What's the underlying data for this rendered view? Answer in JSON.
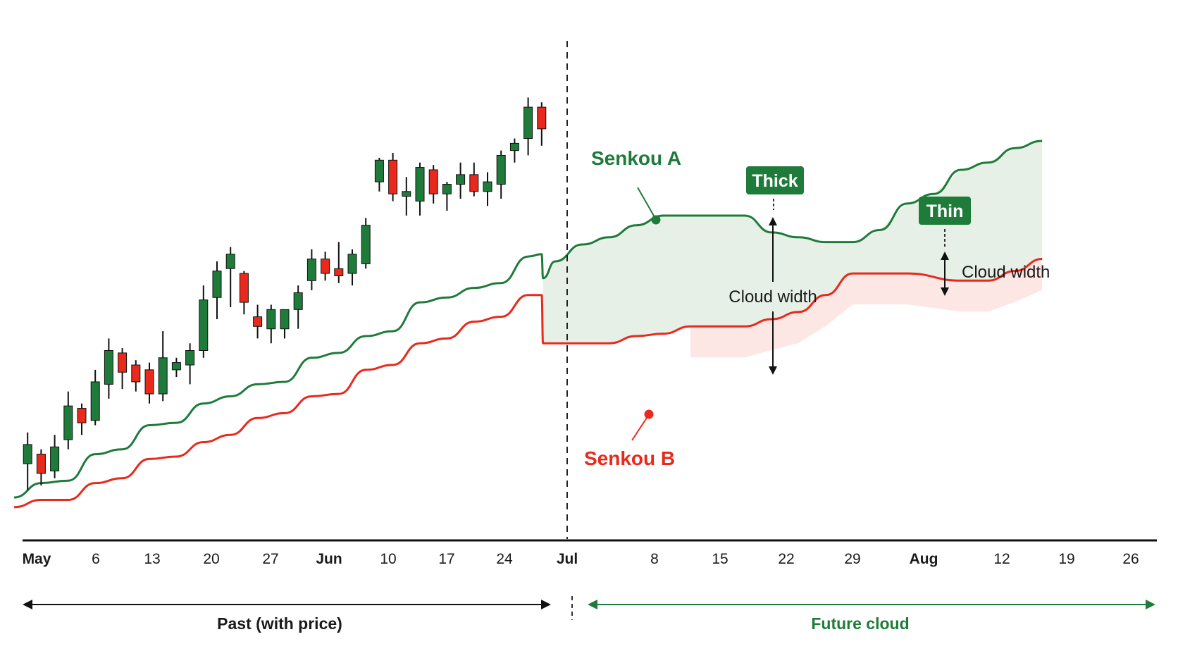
{
  "chart_data": {
    "type": "candlestick_ichimoku",
    "title": "",
    "xlabel": "",
    "ylabel": "",
    "x_ticks": [
      {
        "label": "May",
        "major": true
      },
      {
        "label": "6",
        "major": false
      },
      {
        "label": "13",
        "major": false
      },
      {
        "label": "20",
        "major": false
      },
      {
        "label": "27",
        "major": false
      },
      {
        "label": "Jun",
        "major": true
      },
      {
        "label": "10",
        "major": false
      },
      {
        "label": "17",
        "major": false
      },
      {
        "label": "24",
        "major": false
      },
      {
        "label": "Jul",
        "major": true
      },
      {
        "label": "8",
        "major": false
      },
      {
        "label": "15",
        "major": false
      },
      {
        "label": "22",
        "major": false
      },
      {
        "label": "29",
        "major": false
      },
      {
        "label": "Aug",
        "major": true
      },
      {
        "label": "12",
        "major": false
      },
      {
        "label": "19",
        "major": false
      },
      {
        "label": "26",
        "major": false
      }
    ],
    "colors": {
      "up": "#1e7b3a",
      "down": "#e8291c",
      "cloud_bull": "#e6f0e6",
      "cloud_bear": "#fde3e1",
      "axis": "#111111"
    },
    "candles": [
      {
        "d": 1,
        "o": 28,
        "h": 41,
        "l": 17,
        "c": 36
      },
      {
        "d": 2,
        "o": 32,
        "h": 34,
        "l": 19,
        "c": 24
      },
      {
        "d": 3,
        "o": 25,
        "h": 40,
        "l": 22,
        "c": 35
      },
      {
        "d": 4,
        "o": 38,
        "h": 58,
        "l": 34,
        "c": 52
      },
      {
        "d": 5,
        "o": 51,
        "h": 53,
        "l": 40,
        "c": 45
      },
      {
        "d": 6,
        "o": 46,
        "h": 67,
        "l": 44,
        "c": 62
      },
      {
        "d": 7,
        "o": 61,
        "h": 80,
        "l": 55,
        "c": 75
      },
      {
        "d": 8,
        "o": 74,
        "h": 76,
        "l": 59,
        "c": 66
      },
      {
        "d": 9,
        "o": 69,
        "h": 71,
        "l": 58,
        "c": 62
      },
      {
        "d": 10,
        "o": 67,
        "h": 70,
        "l": 53,
        "c": 57
      },
      {
        "d": 11,
        "o": 57,
        "h": 83,
        "l": 54,
        "c": 72
      },
      {
        "d": 12,
        "o": 67,
        "h": 72,
        "l": 64,
        "c": 70
      },
      {
        "d": 13,
        "o": 69,
        "h": 78,
        "l": 61,
        "c": 75
      },
      {
        "d": 14,
        "o": 75,
        "h": 102,
        "l": 72,
        "c": 96
      },
      {
        "d": 15,
        "o": 97,
        "h": 112,
        "l": 88,
        "c": 108
      },
      {
        "d": 16,
        "o": 109,
        "h": 118,
        "l": 93,
        "c": 115
      },
      {
        "d": 17,
        "o": 107,
        "h": 108,
        "l": 90,
        "c": 95
      },
      {
        "d": 18,
        "o": 89,
        "h": 94,
        "l": 80,
        "c": 85
      },
      {
        "d": 19,
        "o": 84,
        "h": 94,
        "l": 78,
        "c": 92
      },
      {
        "d": 20,
        "o": 84,
        "h": 92,
        "l": 80,
        "c": 92
      },
      {
        "d": 21,
        "o": 92,
        "h": 102,
        "l": 84,
        "c": 99
      },
      {
        "d": 22,
        "o": 104,
        "h": 117,
        "l": 100,
        "c": 113
      },
      {
        "d": 23,
        "o": 113,
        "h": 116,
        "l": 104,
        "c": 107
      },
      {
        "d": 24,
        "o": 109,
        "h": 120,
        "l": 103,
        "c": 106
      },
      {
        "d": 25,
        "o": 107,
        "h": 117,
        "l": 102,
        "c": 115
      },
      {
        "d": 26,
        "o": 111,
        "h": 130,
        "l": 109,
        "c": 127
      },
      {
        "d": 27,
        "o": 145,
        "h": 155,
        "l": 141,
        "c": 154
      },
      {
        "d": 28,
        "o": 154,
        "h": 157,
        "l": 137,
        "c": 140
      },
      {
        "d": 29,
        "o": 139,
        "h": 147,
        "l": 131,
        "c": 141
      },
      {
        "d": 30,
        "o": 137,
        "h": 153,
        "l": 131,
        "c": 151
      },
      {
        "d": 31,
        "o": 150,
        "h": 152,
        "l": 136,
        "c": 140
      },
      {
        "d": 32,
        "o": 140,
        "h": 145,
        "l": 133,
        "c": 144
      },
      {
        "d": 33,
        "o": 144,
        "h": 153,
        "l": 138,
        "c": 148
      },
      {
        "d": 34,
        "o": 148,
        "h": 153,
        "l": 139,
        "c": 141
      },
      {
        "d": 35,
        "o": 141,
        "h": 149,
        "l": 135,
        "c": 145
      },
      {
        "d": 36,
        "o": 144,
        "h": 158,
        "l": 138,
        "c": 156
      },
      {
        "d": 37,
        "o": 158,
        "h": 163,
        "l": 153,
        "c": 161
      },
      {
        "d": 38,
        "o": 163,
        "h": 180,
        "l": 156,
        "c": 176
      },
      {
        "d": 39,
        "o": 176,
        "h": 178,
        "l": 160,
        "c": 167
      }
    ],
    "senkou_a": [
      [
        0,
        14
      ],
      [
        2,
        20
      ],
      [
        4,
        21
      ],
      [
        6,
        32
      ],
      [
        8,
        34
      ],
      [
        10,
        44
      ],
      [
        12,
        45
      ],
      [
        14,
        53
      ],
      [
        16,
        56
      ],
      [
        18,
        61
      ],
      [
        20,
        62
      ],
      [
        22,
        72
      ],
      [
        24,
        74
      ],
      [
        26,
        81
      ],
      [
        28,
        83
      ],
      [
        30,
        95
      ],
      [
        32,
        97
      ],
      [
        34,
        101
      ],
      [
        36,
        103
      ],
      [
        38,
        114
      ],
      [
        39,
        115
      ],
      [
        39.1,
        105
      ],
      [
        40,
        112
      ],
      [
        42,
        119
      ],
      [
        44,
        122
      ],
      [
        46,
        127
      ],
      [
        48,
        131
      ],
      [
        54,
        131
      ],
      [
        56,
        124
      ],
      [
        58,
        122
      ],
      [
        60,
        120
      ],
      [
        62,
        120
      ],
      [
        64,
        125
      ],
      [
        66,
        136
      ],
      [
        68,
        140
      ],
      [
        70,
        150
      ],
      [
        72,
        153
      ],
      [
        74,
        159
      ],
      [
        76,
        162
      ]
    ],
    "senkou_b": [
      [
        0,
        10
      ],
      [
        2,
        13
      ],
      [
        4,
        13
      ],
      [
        6,
        20
      ],
      [
        8,
        22
      ],
      [
        10,
        30
      ],
      [
        12,
        31
      ],
      [
        14,
        37
      ],
      [
        16,
        40
      ],
      [
        18,
        47
      ],
      [
        20,
        49
      ],
      [
        22,
        56
      ],
      [
        24,
        57
      ],
      [
        26,
        67
      ],
      [
        28,
        69
      ],
      [
        30,
        78
      ],
      [
        32,
        80
      ],
      [
        34,
        87
      ],
      [
        36,
        89
      ],
      [
        38,
        98
      ],
      [
        39,
        98
      ],
      [
        39.1,
        78
      ],
      [
        44,
        78
      ],
      [
        46,
        81
      ],
      [
        48,
        82
      ],
      [
        50,
        85
      ],
      [
        52,
        85
      ],
      [
        54,
        85
      ],
      [
        56,
        88
      ],
      [
        58,
        91
      ],
      [
        60,
        98
      ],
      [
        62,
        107
      ],
      [
        64,
        107
      ],
      [
        66,
        107
      ],
      [
        70,
        104
      ],
      [
        72,
        104
      ],
      [
        74,
        108
      ],
      [
        76,
        113
      ]
    ],
    "labels": {
      "senkou_a": "Senkou A",
      "senkou_b": "Senkou B",
      "thick": "Thick",
      "thin": "Thin",
      "cloud_width": "Cloud width",
      "past": "Past (with price)",
      "future": "Future cloud"
    }
  }
}
